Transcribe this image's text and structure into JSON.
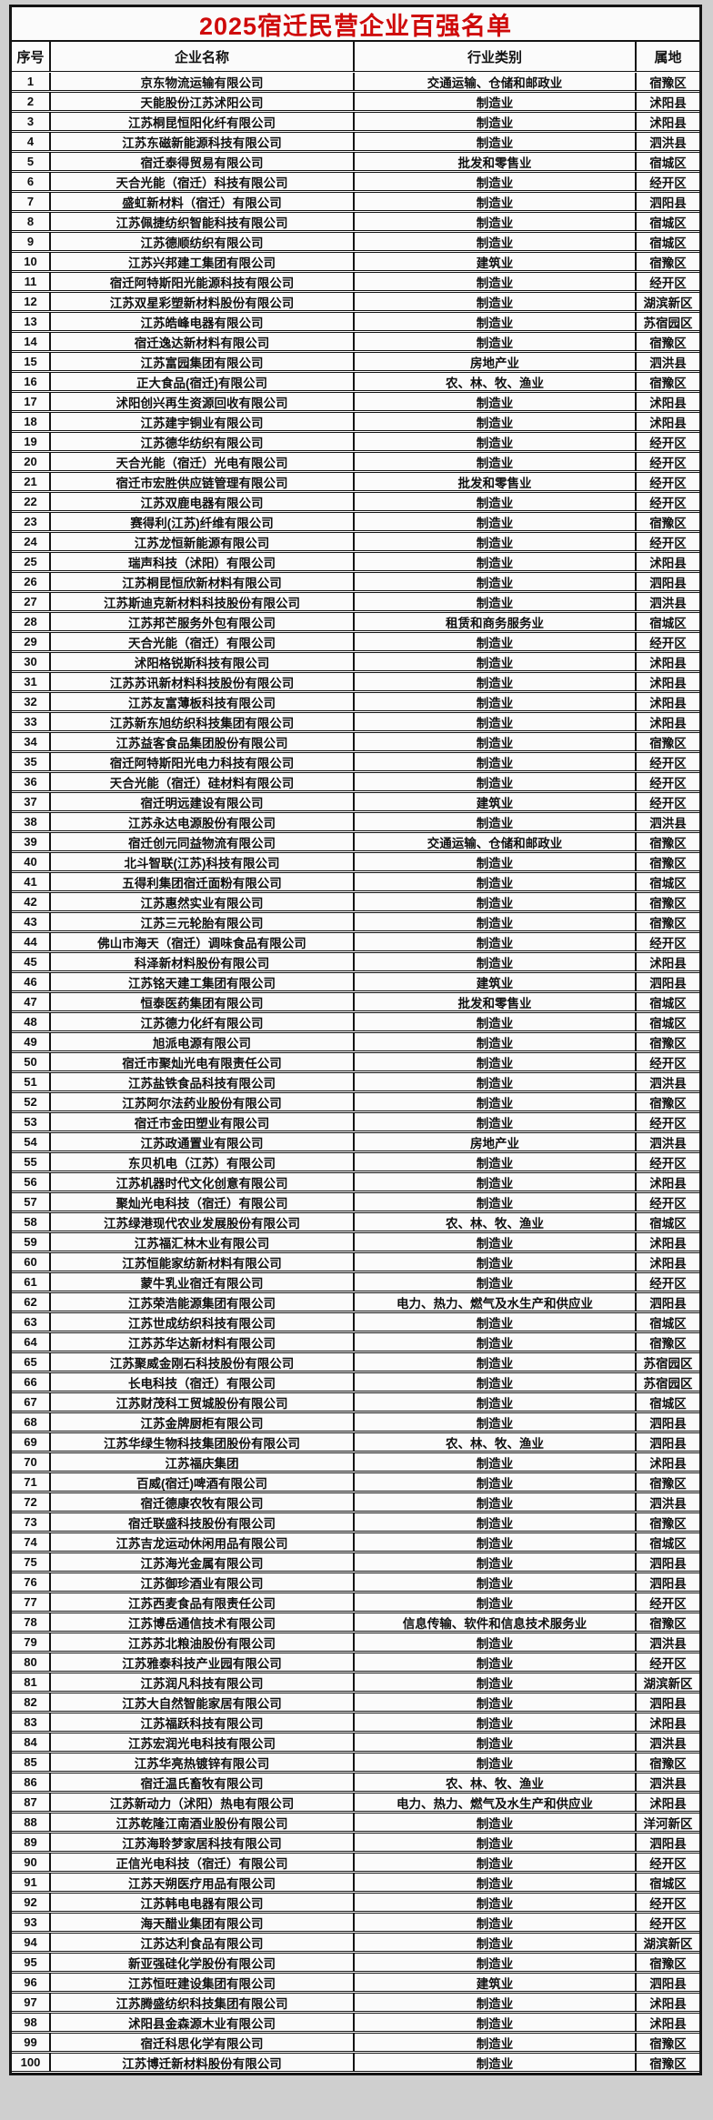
{
  "title": "2025宿迁民营企业百强名单",
  "columns": [
    "序号",
    "企业名称",
    "行业类别",
    "属地"
  ],
  "colors": {
    "title_red": "#cf0a0a",
    "border_black": "#141414",
    "row_background": "#fbfbfb",
    "page_background": "#cfcfcf"
  },
  "rows": [
    [
      "1",
      "京东物流运输有限公司",
      "交通运输、仓储和邮政业",
      "宿豫区"
    ],
    [
      "2",
      "天能股份江苏沭阳公司",
      "制造业",
      "沭阳县"
    ],
    [
      "3",
      "江苏桐昆恒阳化纤有限公司",
      "制造业",
      "沭阳县"
    ],
    [
      "4",
      "江苏东磁新能源科技有限公司",
      "制造业",
      "泗洪县"
    ],
    [
      "5",
      "宿迁泰得贸易有限公司",
      "批发和零售业",
      "宿城区"
    ],
    [
      "6",
      "天合光能（宿迁）科技有限公司",
      "制造业",
      "经开区"
    ],
    [
      "7",
      "盛虹新材料（宿迁）有限公司",
      "制造业",
      "泗阳县"
    ],
    [
      "8",
      "江苏佩捷纺织智能科技有限公司",
      "制造业",
      "宿城区"
    ],
    [
      "9",
      "江苏德顺纺织有限公司",
      "制造业",
      "宿城区"
    ],
    [
      "10",
      "江苏兴邦建工集团有限公司",
      "建筑业",
      "宿豫区"
    ],
    [
      "11",
      "宿迁阿特斯阳光能源科技有限公司",
      "制造业",
      "经开区"
    ],
    [
      "12",
      "江苏双星彩塑新材料股份有限公司",
      "制造业",
      "湖滨新区"
    ],
    [
      "13",
      "江苏皓峰电器有限公司",
      "制造业",
      "苏宿园区"
    ],
    [
      "14",
      "宿迁逸达新材料有限公司",
      "制造业",
      "宿豫区"
    ],
    [
      "15",
      "江苏富园集团有限公司",
      "房地产业",
      "泗洪县"
    ],
    [
      "16",
      "正大食品(宿迁)有限公司",
      "农、林、牧、渔业",
      "宿豫区"
    ],
    [
      "17",
      "沭阳创兴再生资源回收有限公司",
      "制造业",
      "沭阳县"
    ],
    [
      "18",
      "江苏建宇铜业有限公司",
      "制造业",
      "沭阳县"
    ],
    [
      "19",
      "江苏德华纺织有限公司",
      "制造业",
      "经开区"
    ],
    [
      "20",
      "天合光能（宿迁）光电有限公司",
      "制造业",
      "经开区"
    ],
    [
      "21",
      "宿迁市宏胜供应链管理有限公司",
      "批发和零售业",
      "经开区"
    ],
    [
      "22",
      "江苏双鹿电器有限公司",
      "制造业",
      "经开区"
    ],
    [
      "23",
      "赛得利(江苏)纤维有限公司",
      "制造业",
      "宿豫区"
    ],
    [
      "24",
      "江苏龙恒新能源有限公司",
      "制造业",
      "经开区"
    ],
    [
      "25",
      "瑞声科技（沭阳）有限公司",
      "制造业",
      "沭阳县"
    ],
    [
      "26",
      "江苏桐昆恒欣新材料有限公司",
      "制造业",
      "泗阳县"
    ],
    [
      "27",
      "江苏斯迪克新材料科技股份有限公司",
      "制造业",
      "泗洪县"
    ],
    [
      "28",
      "江苏邦芒服务外包有限公司",
      "租赁和商务服务业",
      "宿城区"
    ],
    [
      "29",
      "天合光能（宿迁）有限公司",
      "制造业",
      "经开区"
    ],
    [
      "30",
      "沭阳格锐斯科技有限公司",
      "制造业",
      "沭阳县"
    ],
    [
      "31",
      "江苏苏讯新材料科技股份有限公司",
      "制造业",
      "沭阳县"
    ],
    [
      "32",
      "江苏友富薄板科技有限公司",
      "制造业",
      "沭阳县"
    ],
    [
      "33",
      "江苏新东旭纺织科技集团有限公司",
      "制造业",
      "沭阳县"
    ],
    [
      "34",
      "江苏益客食品集团股份有限公司",
      "制造业",
      "宿豫区"
    ],
    [
      "35",
      "宿迁阿特斯阳光电力科技有限公司",
      "制造业",
      "经开区"
    ],
    [
      "36",
      "天合光能（宿迁）硅材料有限公司",
      "制造业",
      "经开区"
    ],
    [
      "37",
      "宿迁明远建设有限公司",
      "建筑业",
      "经开区"
    ],
    [
      "38",
      "江苏永达电源股份有限公司",
      "制造业",
      "泗洪县"
    ],
    [
      "39",
      "宿迁创元同益物流有限公司",
      "交通运输、仓储和邮政业",
      "宿豫区"
    ],
    [
      "40",
      "北斗智联(江苏)科技有限公司",
      "制造业",
      "宿豫区"
    ],
    [
      "41",
      "五得利集团宿迁面粉有限公司",
      "制造业",
      "宿城区"
    ],
    [
      "42",
      "江苏惠然实业有限公司",
      "制造业",
      "宿豫区"
    ],
    [
      "43",
      "江苏三元轮胎有限公司",
      "制造业",
      "宿豫区"
    ],
    [
      "44",
      "佛山市海天（宿迁）调味食品有限公司",
      "制造业",
      "经开区"
    ],
    [
      "45",
      "科泽新材料股份有限公司",
      "制造业",
      "沭阳县"
    ],
    [
      "46",
      "江苏铭天建工集团有限公司",
      "建筑业",
      "泗阳县"
    ],
    [
      "47",
      "恒泰医药集团有限公司",
      "批发和零售业",
      "宿城区"
    ],
    [
      "48",
      "江苏德力化纤有限公司",
      "制造业",
      "宿城区"
    ],
    [
      "49",
      "旭派电源有限公司",
      "制造业",
      "宿豫区"
    ],
    [
      "50",
      "宿迁市聚灿光电有限责任公司",
      "制造业",
      "经开区"
    ],
    [
      "51",
      "江苏盐铁食品科技有限公司",
      "制造业",
      "泗洪县"
    ],
    [
      "52",
      "江苏阿尔法药业股份有限公司",
      "制造业",
      "宿豫区"
    ],
    [
      "53",
      "宿迁市金田塑业有限公司",
      "制造业",
      "经开区"
    ],
    [
      "54",
      "江苏政通置业有限公司",
      "房地产业",
      "泗洪县"
    ],
    [
      "55",
      "东贝机电（江苏）有限公司",
      "制造业",
      "经开区"
    ],
    [
      "56",
      "江苏机器时代文化创意有限公司",
      "制造业",
      "沭阳县"
    ],
    [
      "57",
      "聚灿光电科技（宿迁）有限公司",
      "制造业",
      "经开区"
    ],
    [
      "58",
      "江苏绿港现代农业发展股份有限公司",
      "农、林、牧、渔业",
      "宿城区"
    ],
    [
      "59",
      "江苏福汇林木业有限公司",
      "制造业",
      "沭阳县"
    ],
    [
      "60",
      "江苏恒能家纺新材料有限公司",
      "制造业",
      "沭阳县"
    ],
    [
      "61",
      "蒙牛乳业宿迁有限公司",
      "制造业",
      "经开区"
    ],
    [
      "62",
      "江苏荣浩能源集团有限公司",
      "电力、热力、燃气及水生产和供应业",
      "泗阳县"
    ],
    [
      "63",
      "江苏世成纺织科技有限公司",
      "制造业",
      "宿城区"
    ],
    [
      "64",
      "江苏苏华达新材料有限公司",
      "制造业",
      "宿豫区"
    ],
    [
      "65",
      "江苏聚威金刚石科技股份有限公司",
      "制造业",
      "苏宿园区"
    ],
    [
      "66",
      "长电科技（宿迁）有限公司",
      "制造业",
      "苏宿园区"
    ],
    [
      "67",
      "江苏财茂科工贸城股份有限公司",
      "制造业",
      "宿城区"
    ],
    [
      "68",
      "江苏金牌厨柜有限公司",
      "制造业",
      "泗阳县"
    ],
    [
      "69",
      "江苏华绿生物科技集团股份有限公司",
      "农、林、牧、渔业",
      "泗阳县"
    ],
    [
      "70",
      "江苏福庆集团",
      "制造业",
      "沭阳县"
    ],
    [
      "71",
      "百威(宿迁)啤酒有限公司",
      "制造业",
      "宿豫区"
    ],
    [
      "72",
      "宿迁德康农牧有限公司",
      "制造业",
      "泗洪县"
    ],
    [
      "73",
      "宿迁联盛科技股份有限公司",
      "制造业",
      "宿豫区"
    ],
    [
      "74",
      "江苏吉龙运动休闲用品有限公司",
      "制造业",
      "宿城区"
    ],
    [
      "75",
      "江苏海光金属有限公司",
      "制造业",
      "泗阳县"
    ],
    [
      "76",
      "江苏御珍酒业有限公司",
      "制造业",
      "泗阳县"
    ],
    [
      "77",
      "江苏西麦食品有限责任公司",
      "制造业",
      "经开区"
    ],
    [
      "78",
      "江苏博岳通信技术有限公司",
      "信息传输、软件和信息技术服务业",
      "宿豫区"
    ],
    [
      "79",
      "江苏苏北粮油股份有限公司",
      "制造业",
      "泗洪县"
    ],
    [
      "80",
      "江苏雅泰科技产业园有限公司",
      "制造业",
      "经开区"
    ],
    [
      "81",
      "江苏润凡科技有限公司",
      "制造业",
      "湖滨新区"
    ],
    [
      "82",
      "江苏大自然智能家居有限公司",
      "制造业",
      "泗阳县"
    ],
    [
      "83",
      "江苏福跃科技有限公司",
      "制造业",
      "沭阳县"
    ],
    [
      "84",
      "江苏宏润光电科技有限公司",
      "制造业",
      "泗洪县"
    ],
    [
      "85",
      "江苏华亮热镀锌有限公司",
      "制造业",
      "宿豫区"
    ],
    [
      "86",
      "宿迁温氏畜牧有限公司",
      "农、林、牧、渔业",
      "泗洪县"
    ],
    [
      "87",
      "江苏新动力（沭阳）热电有限公司",
      "电力、热力、燃气及水生产和供应业",
      "沭阳县"
    ],
    [
      "88",
      "江苏乾隆江南酒业股份有限公司",
      "制造业",
      "洋河新区"
    ],
    [
      "89",
      "江苏海聆梦家居科技有限公司",
      "制造业",
      "泗阳县"
    ],
    [
      "90",
      "正信光电科技（宿迁）有限公司",
      "制造业",
      "经开区"
    ],
    [
      "91",
      "江苏天朔医疗用品有限公司",
      "制造业",
      "宿城区"
    ],
    [
      "92",
      "江苏韩电电器有限公司",
      "制造业",
      "经开区"
    ],
    [
      "93",
      "海天醋业集团有限公司",
      "制造业",
      "经开区"
    ],
    [
      "94",
      "江苏达利食品有限公司",
      "制造业",
      "湖滨新区"
    ],
    [
      "95",
      "新亚强硅化学股份有限公司",
      "制造业",
      "宿豫区"
    ],
    [
      "96",
      "江苏恒旺建设集团有限公司",
      "建筑业",
      "泗阳县"
    ],
    [
      "97",
      "江苏腾盛纺织科技集团有限公司",
      "制造业",
      "沭阳县"
    ],
    [
      "98",
      "沭阳县金森源木业有限公司",
      "制造业",
      "沭阳县"
    ],
    [
      "99",
      "宿迁科思化学有限公司",
      "制造业",
      "宿豫区"
    ],
    [
      "100",
      "江苏博迁新材料股份有限公司",
      "制造业",
      "宿豫区"
    ]
  ]
}
